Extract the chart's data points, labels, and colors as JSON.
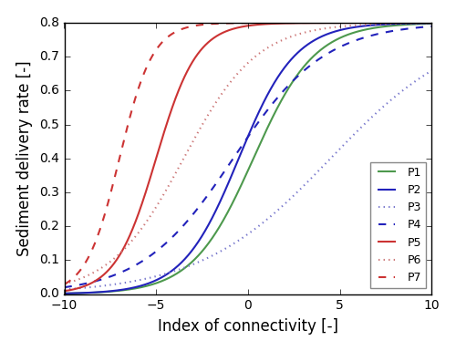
{
  "xlabel": "Index of connectivity [-]",
  "ylabel": "Sediment delivery rate [-]",
  "xlim": [
    -10,
    10
  ],
  "ylim": [
    0,
    0.8
  ],
  "yticks": [
    0.0,
    0.1,
    0.2,
    0.3,
    0.4,
    0.5,
    0.6,
    0.7,
    0.8
  ],
  "xticks": [
    -10,
    -5,
    0,
    5,
    10
  ],
  "curves": [
    {
      "label": "P1",
      "color": "#4d994d",
      "linestyle": "solid",
      "k": 0.6,
      "x0": 0.3
    },
    {
      "label": "P2",
      "color": "#2222bb",
      "linestyle": "solid",
      "k": 0.65,
      "x0": -0.5
    },
    {
      "label": "P3",
      "color": "#7777cc",
      "linestyle": "dotted",
      "k": 0.28,
      "x0": 4.5
    },
    {
      "label": "P4",
      "color": "#2222bb",
      "linestyle": "dashed",
      "k": 0.4,
      "x0": -0.8
    },
    {
      "label": "P5",
      "color": "#cc3333",
      "linestyle": "solid",
      "k": 0.9,
      "x0": -5.0
    },
    {
      "label": "P6",
      "color": "#cc7777",
      "linestyle": "dotted",
      "k": 0.5,
      "x0": -3.5
    },
    {
      "label": "P7",
      "color": "#cc3333",
      "linestyle": "dashed",
      "k": 1.1,
      "x0": -7.0
    }
  ],
  "sdr_max": 0.8,
  "legend_loc": "lower right",
  "figsize": [
    5.0,
    3.85
  ],
  "dpi": 100
}
